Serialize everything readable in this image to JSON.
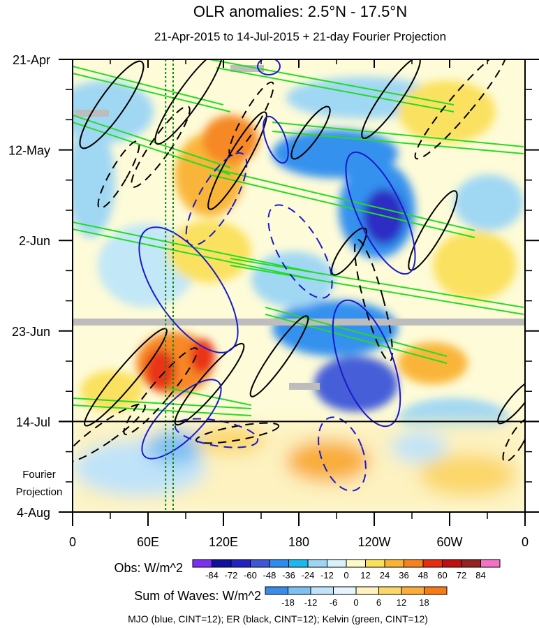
{
  "chart_data": {
    "type": "heatmap",
    "title": "OLR anomalies: 2.5°N - 17.5°N",
    "subtitle": "21-Apr-2015 to 14-Jul-2015 + 21-day Fourier Projection",
    "x_axis": {
      "range": [
        0,
        360
      ],
      "ticks": [
        {
          "lon": 0,
          "label": "0"
        },
        {
          "lon": 60,
          "label": "60E"
        },
        {
          "lon": 120,
          "label": "120E"
        },
        {
          "lon": 180,
          "label": "180"
        },
        {
          "lon": 240,
          "label": "120W"
        },
        {
          "lon": 300,
          "label": "60W"
        },
        {
          "lon": 360,
          "label": "0"
        }
      ]
    },
    "y_axis": {
      "range_days": [
        0,
        105
      ],
      "ticks": [
        {
          "day": 0,
          "label": "21-Apr"
        },
        {
          "day": 21,
          "label": "12-May"
        },
        {
          "day": 42,
          "label": "2-Jun"
        },
        {
          "day": 63,
          "label": "23-Jun"
        },
        {
          "day": 84,
          "label": "14-Jul"
        },
        {
          "day": 105,
          "label": "4-Aug"
        }
      ],
      "observation_end_day": 84,
      "projection_label_1": "Fourier",
      "projection_label_2": "Projection"
    },
    "reference_lines_lon": [
      74,
      80
    ],
    "obs_colorbar": {
      "label": "Obs: W/m^2",
      "levels": [
        "-84",
        "-72",
        "-60",
        "-48",
        "-36",
        "-24",
        "-12",
        "0",
        "12",
        "24",
        "36",
        "48",
        "60",
        "72",
        "84"
      ],
      "colors": [
        "#7b2ff0",
        "#10119e",
        "#2222c4",
        "#3c57d8",
        "#2c8cf0",
        "#1ab8f0",
        "#9cd6f5",
        "#d7f2fa",
        "#fdfac8",
        "#fbe05a",
        "#f9b232",
        "#f6821b",
        "#e92b0f",
        "#c10f0f",
        "#94231f",
        "#f571c5"
      ]
    },
    "waves_colorbar": {
      "label": "Sum of Waves: W/m^2",
      "levels": [
        "-18",
        "-12",
        "-6",
        "0",
        "6",
        "12",
        "18"
      ],
      "colors": [
        "#3b8ce8",
        "#7fc0f2",
        "#bfe3f8",
        "#e4f4fc",
        "#fdf2c0",
        "#fbd76a",
        "#f9ad3a",
        "#f57c16"
      ]
    },
    "legend_text": "MJO (blue, CINT=12); ER (black, CINT=12); Kelvin (green, CINT=12)",
    "series": [
      {
        "name": "MJO",
        "color": "#1a1acc",
        "contour_interval": 12
      },
      {
        "name": "ER",
        "color": "#000000",
        "contour_interval": 12
      },
      {
        "name": "Kelvin",
        "color": "#22dd22",
        "contour_interval": 12
      }
    ]
  }
}
